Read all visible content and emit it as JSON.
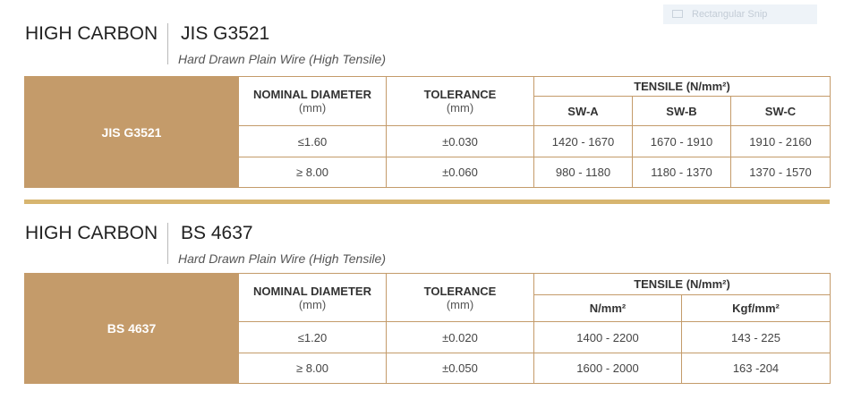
{
  "overlay": {
    "label": "Rectangular Snip"
  },
  "section1": {
    "title_left": "HIGH CARBON",
    "title_right": "JIS G3521",
    "subtitle": "Hard Drawn Plain Wire (High Tensile)",
    "table": {
      "standard": "JIS G3521",
      "col_diameter": "NOMINAL DIAMETER",
      "col_diameter_unit": "(mm)",
      "col_tolerance": "TOLERANCE",
      "col_tolerance_unit": "(mm)",
      "col_tensile": "TENSILE (N/mm²)",
      "sub_cols": [
        "SW-A",
        "SW-B",
        "SW-C"
      ],
      "rows": [
        {
          "diameter": "≤1.60",
          "tolerance": "±0.030",
          "values": [
            "1420 - 1670",
            "1670 - 1910",
            "1910 - 2160"
          ]
        },
        {
          "diameter": "≥ 8.00",
          "tolerance": "±0.060",
          "values": [
            "980 - 1180",
            "1180 - 1370",
            "1370 - 1570"
          ]
        }
      ]
    }
  },
  "section2": {
    "title_left": "HIGH CARBON",
    "title_right": "BS 4637",
    "subtitle": "Hard Drawn Plain Wire (High Tensile)",
    "table": {
      "standard": "BS 4637",
      "col_diameter": "NOMINAL DIAMETER",
      "col_diameter_unit": "(mm)",
      "col_tolerance": "TOLERANCE",
      "col_tolerance_unit": "(mm)",
      "col_tensile": "TENSILE (N/mm²)",
      "sub_cols": [
        "N/mm²",
        "Kgf/mm²"
      ],
      "rows": [
        {
          "diameter": "≤1.20",
          "tolerance": "±0.020",
          "values": [
            "1400 - 2200",
            "143 - 225"
          ]
        },
        {
          "diameter": "≥ 8.00",
          "tolerance": "±0.050",
          "values": [
            "1600 - 2000",
            "163 -204"
          ]
        }
      ]
    }
  },
  "colors": {
    "accent": "#c49b6a",
    "divider": "#d7b56f"
  }
}
